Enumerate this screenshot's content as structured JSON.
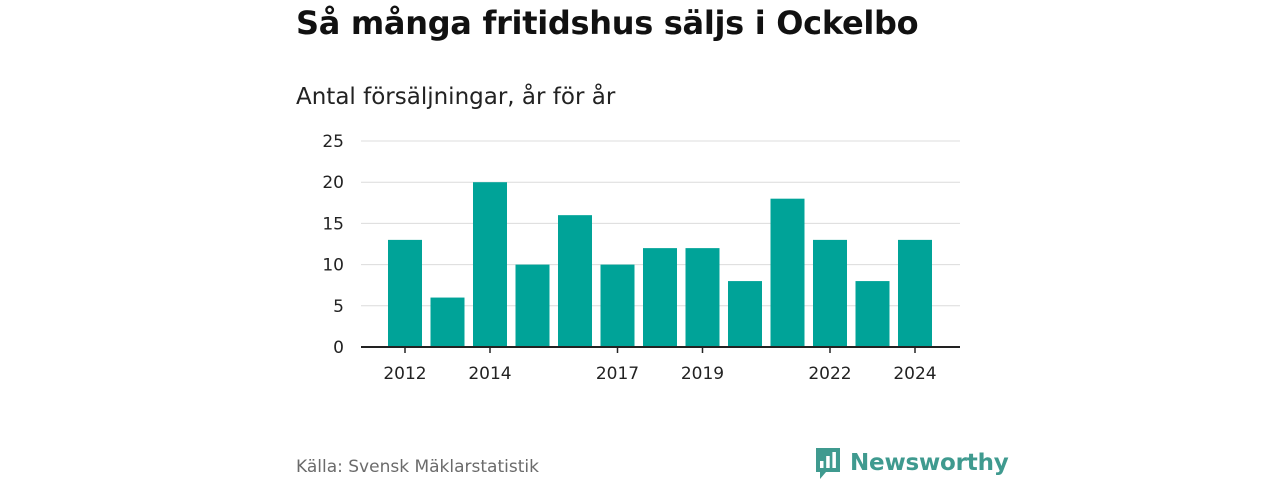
{
  "title": "Så många fritidshus säljs i Ockelbo",
  "subtitle": "Antal försäljningar, år för år",
  "source": "Källa: Svensk Mäklarstatistik",
  "brand": {
    "name": "Newsworthy",
    "icon": "bar-chart-speech-bubble-icon",
    "color": "#3f9a8f"
  },
  "chart_data": {
    "type": "bar",
    "categories": [
      "2012",
      "2013",
      "2014",
      "2015",
      "2016",
      "2017",
      "2018",
      "2019",
      "2020",
      "2021",
      "2022",
      "2023",
      "2024"
    ],
    "values": [
      13,
      6,
      20,
      10,
      16,
      10,
      12,
      12,
      8,
      18,
      13,
      8,
      13
    ],
    "x_tick_labels": [
      "2012",
      "2014",
      "2017",
      "2019",
      "2022",
      "2024"
    ],
    "y_ticks": [
      0,
      5,
      10,
      15,
      20,
      25
    ],
    "ylim": [
      0,
      25
    ],
    "grid": true,
    "bar_color": "#00a398",
    "title": "Så många fritidshus säljs i Ockelbo",
    "subtitle": "Antal försäljningar, år för år",
    "xlabel": "",
    "ylabel": ""
  }
}
